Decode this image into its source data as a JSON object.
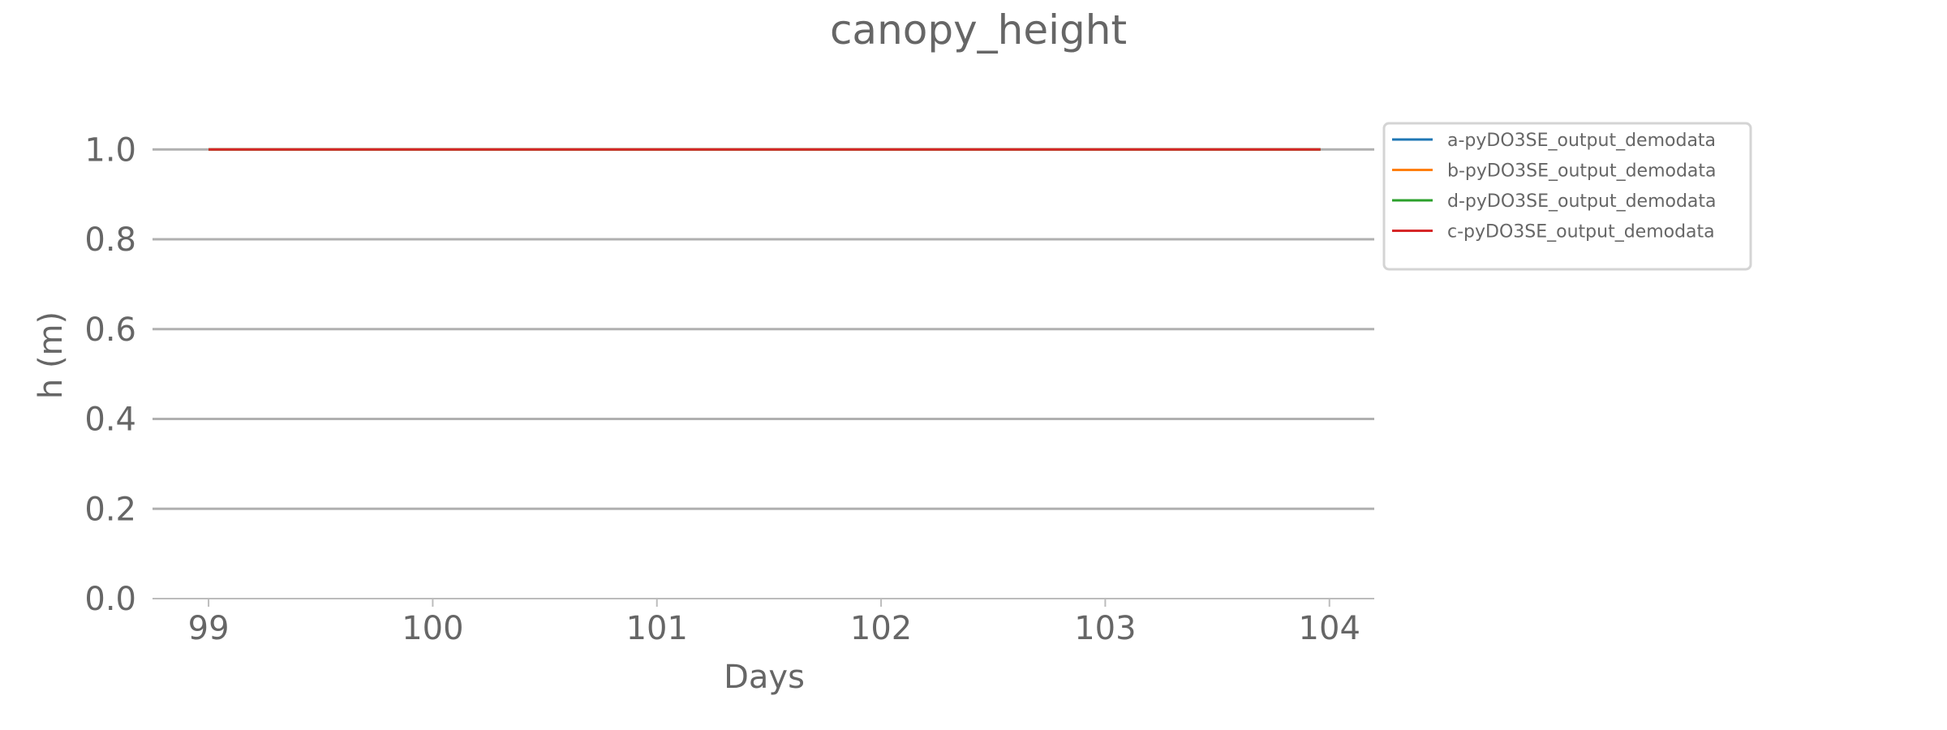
{
  "chart_data": {
    "type": "line",
    "title": "canopy_height",
    "xlabel": "Days",
    "ylabel": "h (m)",
    "xlim": [
      98.75,
      104.2
    ],
    "ylim": [
      0.0,
      1.08
    ],
    "xticks": [
      99,
      100,
      101,
      102,
      103,
      104
    ],
    "xtick_labels": [
      "99",
      "100",
      "101",
      "102",
      "103",
      "104"
    ],
    "yticks": [
      0.0,
      0.2,
      0.4,
      0.6,
      0.8,
      1.0
    ],
    "ytick_labels": [
      "0.0",
      "0.2",
      "0.4",
      "0.6",
      "0.8",
      "1.0"
    ],
    "grid": "horizontal",
    "legend_position": "outside-right-top",
    "series": [
      {
        "name": "a-pyDO3SE_output_demodata",
        "color": "#1f77b4",
        "x": [
          99.0,
          103.96
        ],
        "y": [
          1.0,
          1.0
        ]
      },
      {
        "name": "b-pyDO3SE_output_demodata",
        "color": "#ff7f0e",
        "x": [
          99.0,
          103.96
        ],
        "y": [
          1.0,
          1.0
        ]
      },
      {
        "name": "d-pyDO3SE_output_demodata",
        "color": "#2ca02c",
        "x": [
          99.0,
          103.96
        ],
        "y": [
          1.0,
          1.0
        ]
      },
      {
        "name": "c-pyDO3SE_output_demodata",
        "color": "#d62728",
        "x": [
          99.0,
          103.96
        ],
        "y": [
          1.0,
          1.0
        ]
      }
    ]
  }
}
